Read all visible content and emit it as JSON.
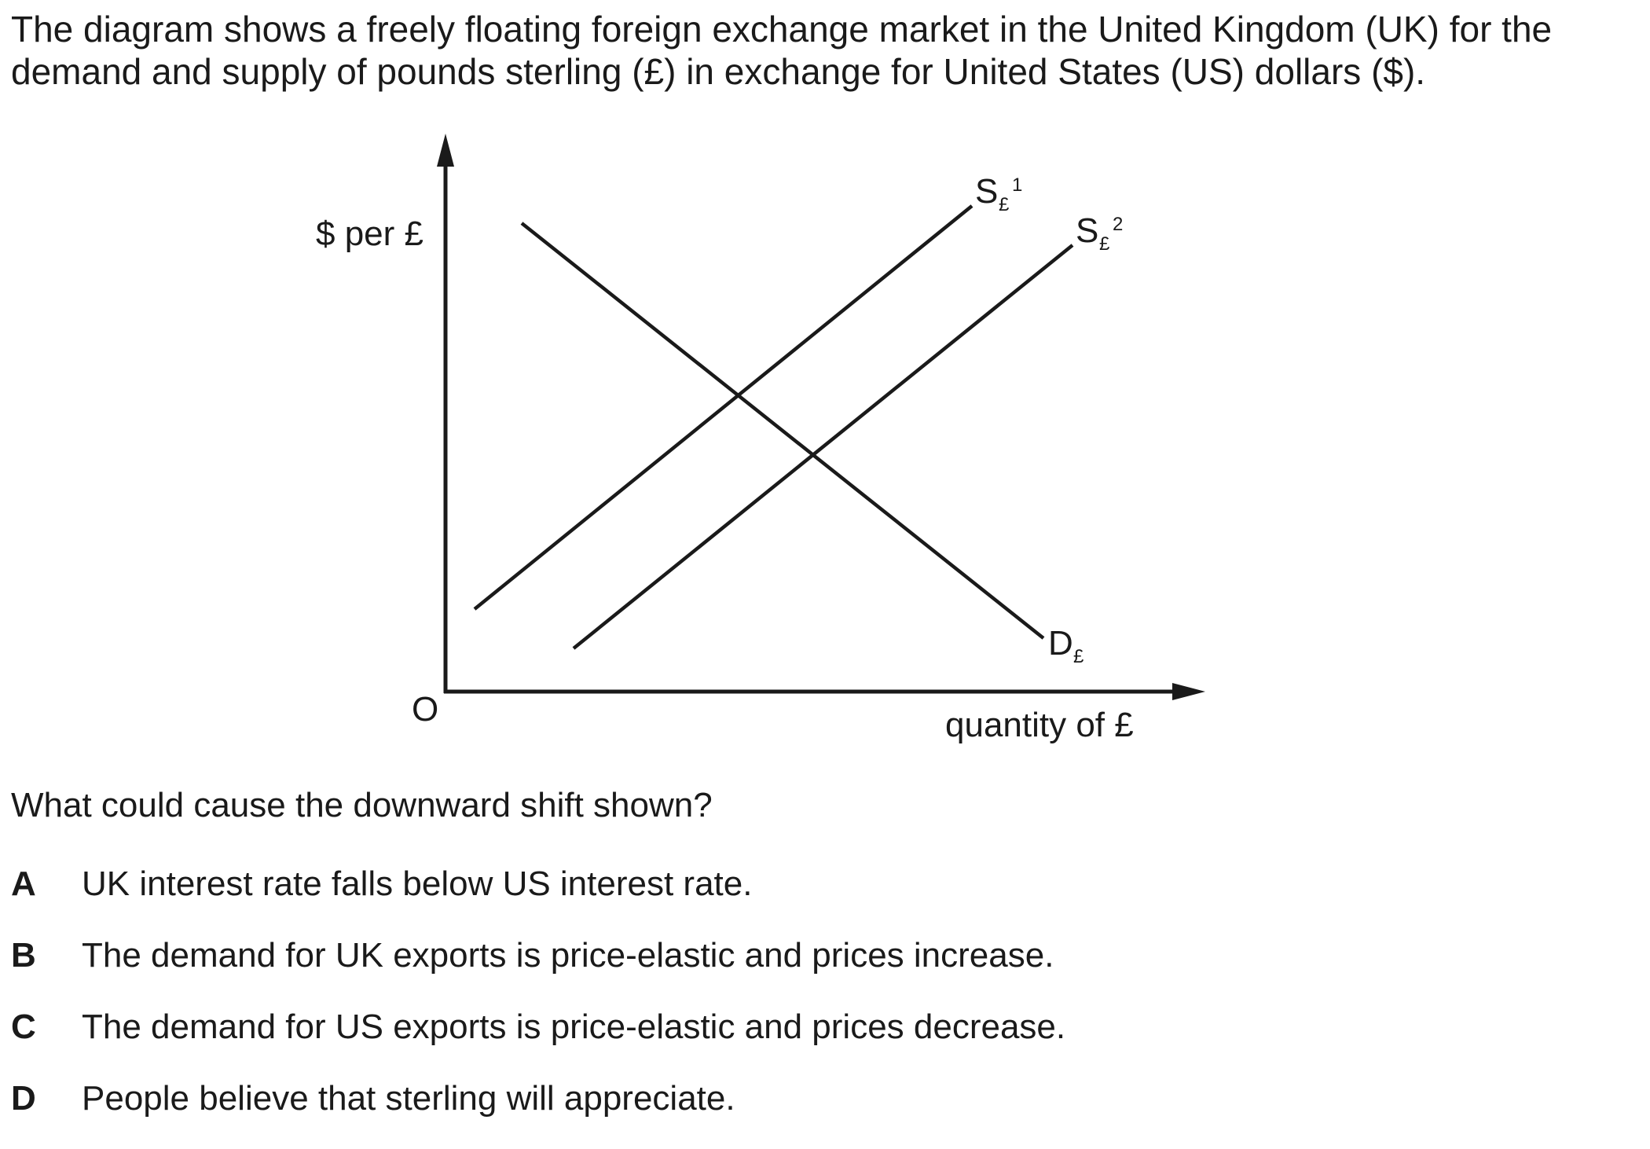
{
  "intro": {
    "line1": "The diagram shows a freely floating foreign exchange market in the United Kingdom (UK) for the",
    "line2": "demand and supply of pounds sterling (£) in exchange for United States (US) dollars ($)."
  },
  "diagram": {
    "y_axis_label": "$ per £",
    "x_axis_label": "quantity of £",
    "origin_label": "O",
    "supply1": {
      "main": "S",
      "sub": "£",
      "sup": "1"
    },
    "supply2": {
      "main": "S",
      "sub": "£",
      "sup": "2"
    },
    "demand": {
      "main": "D",
      "sub": "£"
    }
  },
  "question": "What could cause the downward shift shown?",
  "options": [
    {
      "letter": "A",
      "text": "UK interest rate falls below US interest rate."
    },
    {
      "letter": "B",
      "text": "The demand for UK exports is price-elastic and prices increase."
    },
    {
      "letter": "C",
      "text": "The demand for US exports is price-elastic and prices decrease."
    },
    {
      "letter": "D",
      "text": "People believe that sterling will appreciate."
    }
  ]
}
